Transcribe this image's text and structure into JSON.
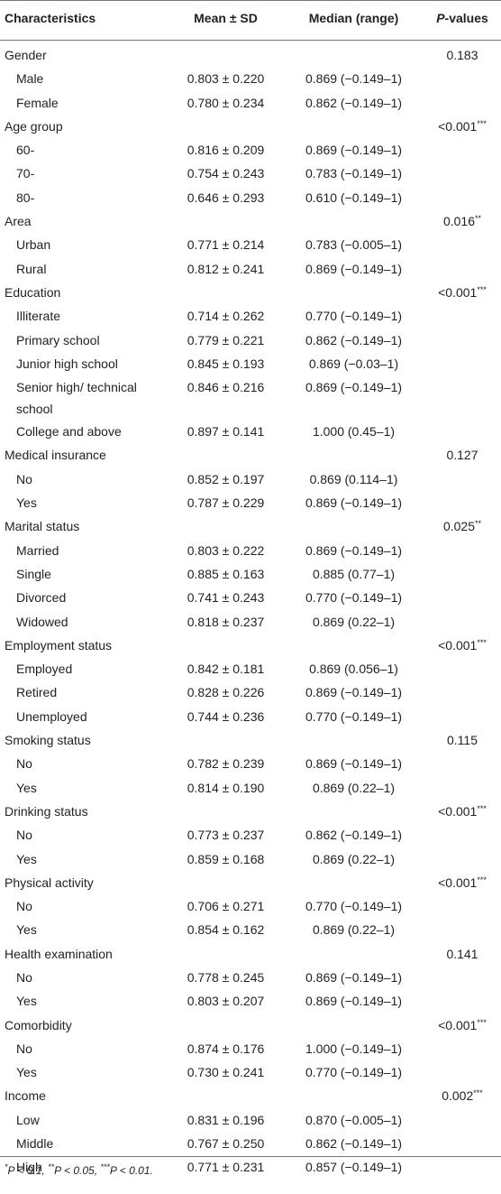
{
  "header": {
    "col1": "Characteristics",
    "col2": "Mean ± SD",
    "col3": "Median (range)",
    "col4_italic": "P",
    "col4_rest": "-values"
  },
  "rows": [
    {
      "kind": "group",
      "label": "Gender",
      "mean": "",
      "median": "",
      "p": "0.183",
      "sig": ""
    },
    {
      "kind": "sub",
      "label": "Male",
      "mean": "0.803 ± 0.220",
      "median": "0.869 (−0.149–1)",
      "p": "",
      "sig": ""
    },
    {
      "kind": "sub",
      "label": "Female",
      "mean": "0.780 ± 0.234",
      "median": "0.862 (−0.149–1)",
      "p": "",
      "sig": ""
    },
    {
      "kind": "group",
      "label": "Age group",
      "mean": "",
      "median": "",
      "p": "<0.001",
      "sig": "***"
    },
    {
      "kind": "sub",
      "label": "60-",
      "mean": "0.816 ± 0.209",
      "median": "0.869 (−0.149–1)",
      "p": "",
      "sig": ""
    },
    {
      "kind": "sub",
      "label": "70-",
      "mean": "0.754 ± 0.243",
      "median": "0.783 (−0.149–1)",
      "p": "",
      "sig": ""
    },
    {
      "kind": "sub",
      "label": "80-",
      "mean": "0.646 ± 0.293",
      "median": "0.610 (−0.149–1)",
      "p": "",
      "sig": ""
    },
    {
      "kind": "group",
      "label": "Area",
      "mean": "",
      "median": "",
      "p": "0.016",
      "sig": "**"
    },
    {
      "kind": "sub",
      "label": "Urban",
      "mean": "0.771 ± 0.214",
      "median": "0.783 (−0.005–1)",
      "p": "",
      "sig": ""
    },
    {
      "kind": "sub",
      "label": "Rural",
      "mean": "0.812 ± 0.241",
      "median": "0.869 (−0.149–1)",
      "p": "",
      "sig": ""
    },
    {
      "kind": "group",
      "label": "Education",
      "mean": "",
      "median": "",
      "p": "<0.001",
      "sig": "***"
    },
    {
      "kind": "sub",
      "label": "Illiterate",
      "mean": "0.714 ± 0.262",
      "median": "0.770 (−0.149–1)",
      "p": "",
      "sig": ""
    },
    {
      "kind": "sub",
      "label": "Primary school",
      "mean": "0.779 ± 0.221",
      "median": "0.862 (−0.149–1)",
      "p": "",
      "sig": ""
    },
    {
      "kind": "sub",
      "label": "Junior high school",
      "mean": "0.845 ± 0.193",
      "median": "0.869 (−0.03–1)",
      "p": "",
      "sig": ""
    },
    {
      "kind": "tall",
      "label": "Senior high/ technical school",
      "mean": "0.846 ± 0.216",
      "median": "0.869 (−0.149–1)",
      "p": "",
      "sig": ""
    },
    {
      "kind": "sub",
      "label": "College and above",
      "mean": "0.897 ± 0.141",
      "median": "1.000 (0.45–1)",
      "p": "",
      "sig": ""
    },
    {
      "kind": "group",
      "label": "Medical insurance",
      "mean": "",
      "median": "",
      "p": "0.127",
      "sig": ""
    },
    {
      "kind": "sub",
      "label": "No",
      "mean": "0.852 ± 0.197",
      "median": "0.869 (0.114–1)",
      "p": "",
      "sig": ""
    },
    {
      "kind": "sub",
      "label": "Yes",
      "mean": "0.787 ± 0.229",
      "median": "0.869 (−0.149–1)",
      "p": "",
      "sig": ""
    },
    {
      "kind": "group",
      "label": "Marital status",
      "mean": "",
      "median": "",
      "p": "0.025",
      "sig": "**"
    },
    {
      "kind": "sub",
      "label": "Married",
      "mean": "0.803 ± 0.222",
      "median": "0.869 (−0.149–1)",
      "p": "",
      "sig": ""
    },
    {
      "kind": "sub",
      "label": "Single",
      "mean": "0.885 ± 0.163",
      "median": "0.885 (0.77–1)",
      "p": "",
      "sig": ""
    },
    {
      "kind": "sub",
      "label": "Divorced",
      "mean": "0.741 ± 0.243",
      "median": "0.770 (−0.149–1)",
      "p": "",
      "sig": ""
    },
    {
      "kind": "sub",
      "label": "Widowed",
      "mean": "0.818 ± 0.237",
      "median": "0.869 (0.22–1)",
      "p": "",
      "sig": ""
    },
    {
      "kind": "group",
      "label": "Employment status",
      "mean": "",
      "median": "",
      "p": "<0.001",
      "sig": "***"
    },
    {
      "kind": "sub",
      "label": "Employed",
      "mean": "0.842 ± 0.181",
      "median": "0.869 (0.056–1)",
      "p": "",
      "sig": ""
    },
    {
      "kind": "sub",
      "label": "Retired",
      "mean": "0.828 ± 0.226",
      "median": "0.869 (−0.149–1)",
      "p": "",
      "sig": ""
    },
    {
      "kind": "sub",
      "label": "Unemployed",
      "mean": "0.744 ± 0.236",
      "median": "0.770 (−0.149–1)",
      "p": "",
      "sig": ""
    },
    {
      "kind": "group",
      "label": "Smoking status",
      "mean": "",
      "median": "",
      "p": "0.115",
      "sig": ""
    },
    {
      "kind": "sub",
      "label": "No",
      "mean": "0.782 ± 0.239",
      "median": "0.869 (−0.149–1)",
      "p": "",
      "sig": ""
    },
    {
      "kind": "sub",
      "label": "Yes",
      "mean": "0.814 ± 0.190",
      "median": "0.869 (0.22–1)",
      "p": "",
      "sig": ""
    },
    {
      "kind": "group",
      "label": "Drinking status",
      "mean": "",
      "median": "",
      "p": "<0.001",
      "sig": "***"
    },
    {
      "kind": "sub",
      "label": "No",
      "mean": "0.773 ± 0.237",
      "median": "0.862 (−0.149–1)",
      "p": "",
      "sig": ""
    },
    {
      "kind": "sub",
      "label": "Yes",
      "mean": "0.859 ± 0.168",
      "median": "0.869 (0.22–1)",
      "p": "",
      "sig": ""
    },
    {
      "kind": "group",
      "label": "Physical activity",
      "mean": "",
      "median": "",
      "p": "<0.001",
      "sig": "***"
    },
    {
      "kind": "sub",
      "label": "No",
      "mean": "0.706 ± 0.271",
      "median": "0.770 (−0.149–1)",
      "p": "",
      "sig": ""
    },
    {
      "kind": "sub",
      "label": "Yes",
      "mean": "0.854 ± 0.162",
      "median": "0.869 (0.22–1)",
      "p": "",
      "sig": ""
    },
    {
      "kind": "group",
      "label": "Health examination",
      "mean": "",
      "median": "",
      "p": "0.141",
      "sig": ""
    },
    {
      "kind": "sub",
      "label": "No",
      "mean": "0.778 ± 0.245",
      "median": "0.869 (−0.149–1)",
      "p": "",
      "sig": ""
    },
    {
      "kind": "sub",
      "label": "Yes",
      "mean": "0.803 ± 0.207",
      "median": "0.869 (−0.149–1)",
      "p": "",
      "sig": ""
    },
    {
      "kind": "group",
      "label": "Comorbidity",
      "mean": "",
      "median": "",
      "p": "<0.001",
      "sig": "***"
    },
    {
      "kind": "sub",
      "label": "No",
      "mean": "0.874 ± 0.176",
      "median": "1.000 (−0.149–1)",
      "p": "",
      "sig": ""
    },
    {
      "kind": "sub",
      "label": "Yes",
      "mean": "0.730 ± 0.241",
      "median": "0.770 (−0.149–1)",
      "p": "",
      "sig": ""
    },
    {
      "kind": "group",
      "label": "Income",
      "mean": "",
      "median": "",
      "p": "0.002",
      "sig": "***"
    },
    {
      "kind": "sub",
      "label": "Low",
      "mean": "0.831 ± 0.196",
      "median": "0.870 (−0.005–1)",
      "p": "",
      "sig": ""
    },
    {
      "kind": "sub",
      "label": "Middle",
      "mean": "0.767 ± 0.250",
      "median": "0.862 (−0.149–1)",
      "p": "",
      "sig": ""
    },
    {
      "kind": "sub",
      "label": "High",
      "mean": "0.771 ± 0.231",
      "median": "0.857 (−0.149–1)",
      "p": "",
      "sig": ""
    }
  ],
  "footnote": {
    "s1": "*",
    "t1": "P < 0.1, ",
    "s2": "**",
    "t2": "P < 0.05, ",
    "s3": "***",
    "t3": "P < 0.01."
  }
}
